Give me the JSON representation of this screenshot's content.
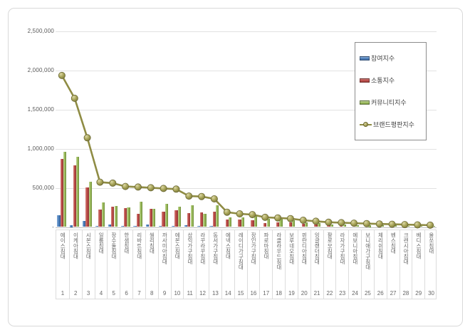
{
  "chart_data": {
    "type": "bar+line",
    "title": "",
    "categories": [
      "에이스침대",
      "이케아침대",
      "시몬스침대",
      "일룸침대",
      "장수돌침대",
      "한샘침대",
      "리바트침대",
      "씰리침대",
      "까사미아침대",
      "에몬스침대",
      "삼익가구침대",
      "라꾸라꾸침대",
      "동서가구침대",
      "에넥스침대",
      "레이디가구침대",
      "장인가구침대",
      "파로마침대",
      "라클라우드침대",
      "보루네오침대",
      "핀란디아침대",
      "잉글랜더침대",
      "팔로모침대",
      "라자가구침대",
      "에보니아침대",
      "보니애가구침대",
      "체리쉬침대",
      "벤스침대",
      "크렌시아침대",
      "베디스침대",
      "올쏘침대"
    ],
    "ranks": [
      "1",
      "2",
      "3",
      "4",
      "5",
      "6",
      "7",
      "8",
      "9",
      "10",
      "11",
      "12",
      "13",
      "14",
      "15",
      "16",
      "17",
      "18",
      "19",
      "20",
      "21",
      "22",
      "23",
      "24",
      "25",
      "26",
      "27",
      "28",
      "29",
      "30"
    ],
    "y_axis": {
      "ticks": [
        {
          "label": "2,500,000",
          "value": 2500000
        },
        {
          "label": "2,000,000",
          "value": 2000000
        },
        {
          "label": "1,500,000",
          "value": 1500000
        },
        {
          "label": "1,000,000",
          "value": 1000000
        },
        {
          "label": "500,000",
          "value": 500000
        },
        {
          "label": "-",
          "value": 0
        }
      ],
      "max": 2500000,
      "grid": true
    },
    "legend_position": "right-top",
    "series": [
      {
        "name": "참여지수",
        "key": "participation-index",
        "type": "bar",
        "color": "#4E81BD",
        "values": [
          152000,
          25000,
          76000,
          15000,
          28000,
          18000,
          14000,
          30000,
          14000,
          12000,
          20000,
          10000,
          14000,
          8000,
          7000,
          9000,
          6000,
          8000,
          6000,
          5000,
          6000,
          4000,
          4000,
          3000,
          3000,
          3000,
          2000,
          2000,
          2000,
          2000
        ]
      },
      {
        "name": "소통지수",
        "key": "communication-index",
        "type": "bar",
        "color": "#BE4B48",
        "values": [
          867000,
          784000,
          505000,
          226000,
          258000,
          242000,
          167000,
          233000,
          195000,
          210000,
          177000,
          186000,
          196000,
          95000,
          91000,
          82000,
          46000,
          61000,
          55000,
          41000,
          36000,
          22000,
          20000,
          18000,
          16000,
          14000,
          13000,
          11000,
          10000,
          9000
        ]
      },
      {
        "name": "커뮤니티지수",
        "key": "community-index",
        "type": "bar",
        "color": "#9BBB59",
        "values": [
          962000,
          893000,
          573000,
          310000,
          265000,
          251000,
          320000,
          236000,
          293000,
          257000,
          281000,
          168000,
          276000,
          124000,
          119000,
          144000,
          104000,
          117000,
          89000,
          59000,
          54000,
          33000,
          30000,
          27000,
          25000,
          22000,
          20000,
          18000,
          16000,
          14000
        ]
      },
      {
        "name": "브랜드평판지수",
        "key": "brand-reputation-index",
        "type": "line",
        "color": "#8F8C44",
        "values": [
          1933000,
          1642000,
          1138000,
          572000,
          560000,
          517000,
          510000,
          501000,
          492000,
          484000,
          395000,
          389000,
          359000,
          189000,
          168000,
          158000,
          124000,
          116000,
          107000,
          86000,
          74000,
          61000,
          55000,
          49000,
          44000,
          39000,
          35000,
          31000,
          27000,
          24000
        ]
      }
    ]
  }
}
